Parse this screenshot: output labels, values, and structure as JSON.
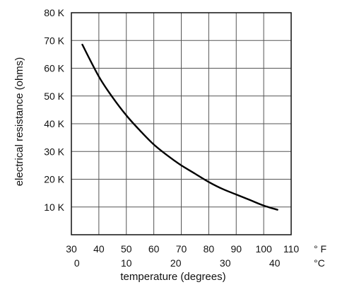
{
  "chart_data": {
    "type": "line",
    "xlabel": "temperature (degrees)",
    "ylabel": "electrical resistance (ohms)",
    "xlim": [
      30,
      110
    ],
    "ylim": [
      0,
      80000
    ],
    "grid": true,
    "y_ticks": [
      {
        "value": 10000,
        "label": "10 K"
      },
      {
        "value": 20000,
        "label": "20 K"
      },
      {
        "value": 30000,
        "label": "30 K"
      },
      {
        "value": 40000,
        "label": "40 K"
      },
      {
        "value": 50000,
        "label": "50 K"
      },
      {
        "value": 60000,
        "label": "60 K"
      },
      {
        "value": 70000,
        "label": "70 K"
      },
      {
        "value": 80000,
        "label": "80 K"
      }
    ],
    "x_ticks_f": [
      {
        "value": 30,
        "label": "30"
      },
      {
        "value": 40,
        "label": "40"
      },
      {
        "value": 50,
        "label": "50"
      },
      {
        "value": 60,
        "label": "60"
      },
      {
        "value": 70,
        "label": "70"
      },
      {
        "value": 80,
        "label": "80"
      },
      {
        "value": 90,
        "label": "90"
      },
      {
        "value": 100,
        "label": "100"
      },
      {
        "value": 110,
        "label": "110"
      }
    ],
    "x_unit_f": "° F",
    "x_ticks_c": [
      {
        "value": 32,
        "label": "0"
      },
      {
        "value": 50,
        "label": "10"
      },
      {
        "value": 68,
        "label": "20"
      },
      {
        "value": 86,
        "label": "30"
      },
      {
        "value": 104,
        "label": "40"
      }
    ],
    "x_unit_c": "°C",
    "series": [
      {
        "x": [
          34,
          40,
          45,
          50,
          55,
          60,
          65,
          70,
          75,
          80,
          85,
          90,
          95,
          100,
          105
        ],
        "y": [
          68500,
          57000,
          49500,
          43000,
          37500,
          32500,
          28500,
          25000,
          22000,
          19000,
          16500,
          14500,
          12500,
          10500,
          9000
        ]
      }
    ]
  }
}
